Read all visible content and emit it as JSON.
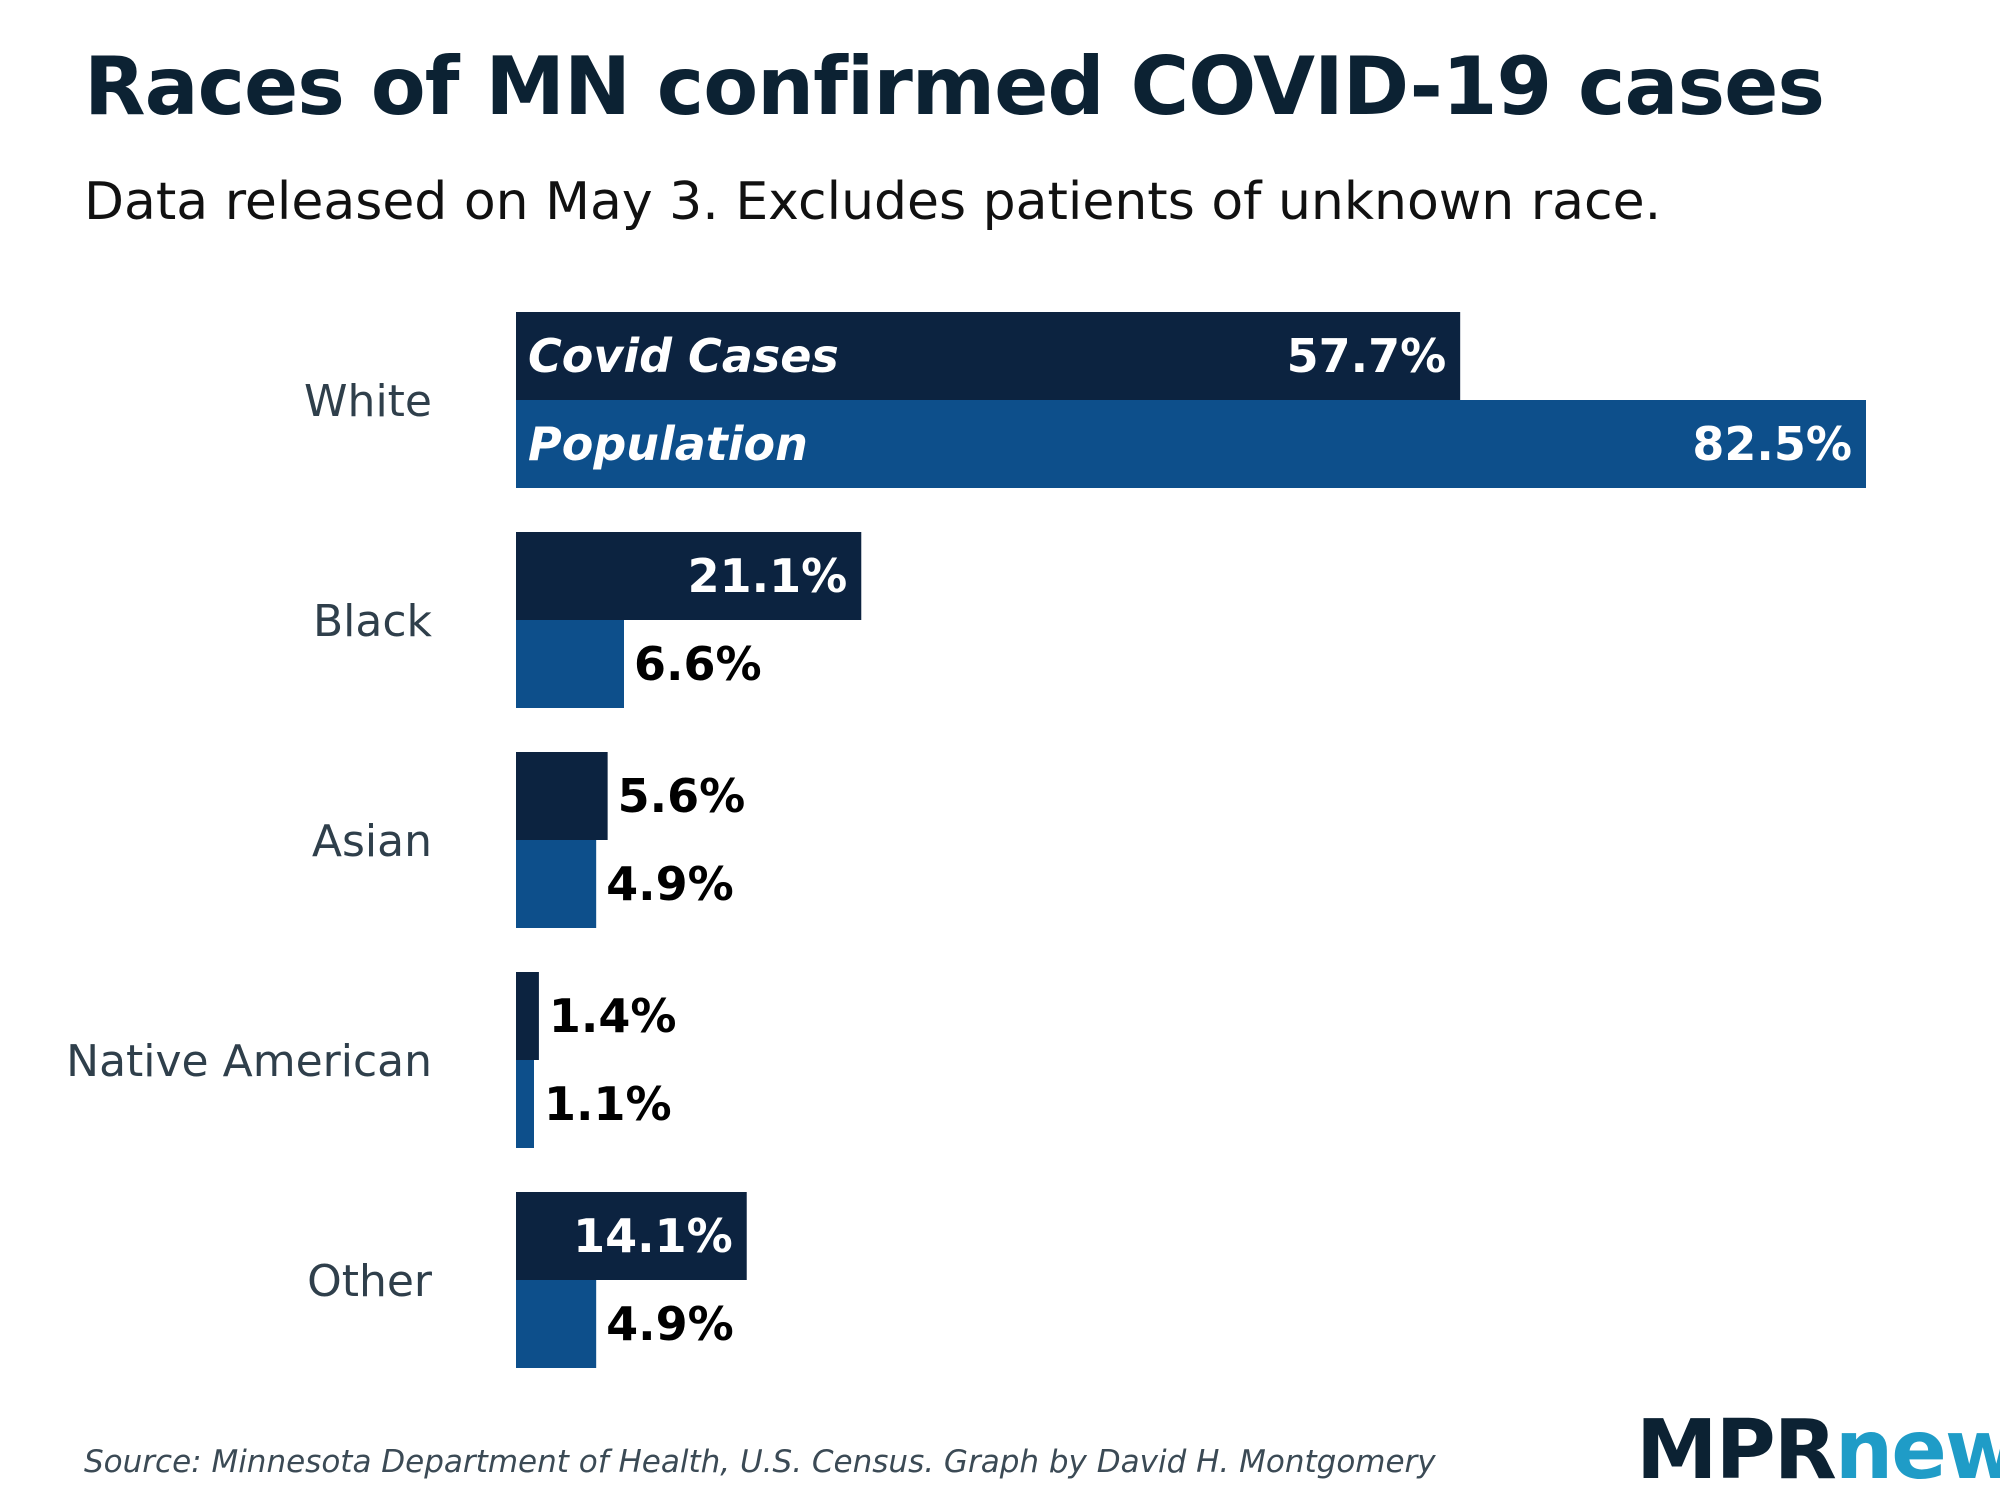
{
  "title": "Races of MN confirmed COVID-19 cases",
  "subtitle": "Data released on May 3. Excludes patients of unknown race.",
  "source": "Source: Minnesota Department of Health, U.S. Census. Graph by David H. Montgomery",
  "logo": {
    "part1": "MPR",
    "part2": "news"
  },
  "colors": {
    "cases": "#0c2340",
    "population": "#0d4f8b",
    "inside_label": "#ffffff",
    "outside_label": "#000000",
    "category_label": "#2f3f4b"
  },
  "chart_data": {
    "type": "bar",
    "orientation": "horizontal",
    "categories": [
      "White",
      "Black",
      "Asian",
      "Native American",
      "Other"
    ],
    "series": [
      {
        "name": "Covid Cases",
        "values": [
          57.7,
          21.1,
          5.6,
          1.4,
          14.1
        ]
      },
      {
        "name": "Population",
        "values": [
          82.5,
          6.6,
          4.9,
          1.1,
          4.9
        ]
      }
    ],
    "value_labels": {
      "Covid Cases": [
        "57.7%",
        "21.1%",
        "5.6%",
        "1.4%",
        "14.1%"
      ],
      "Population": [
        "82.5%",
        "6.6%",
        "4.9%",
        "1.1%",
        "4.9%"
      ]
    },
    "xlim": [
      0,
      82.5
    ],
    "grid": false,
    "legend": "series names printed inside the first category's bars"
  }
}
